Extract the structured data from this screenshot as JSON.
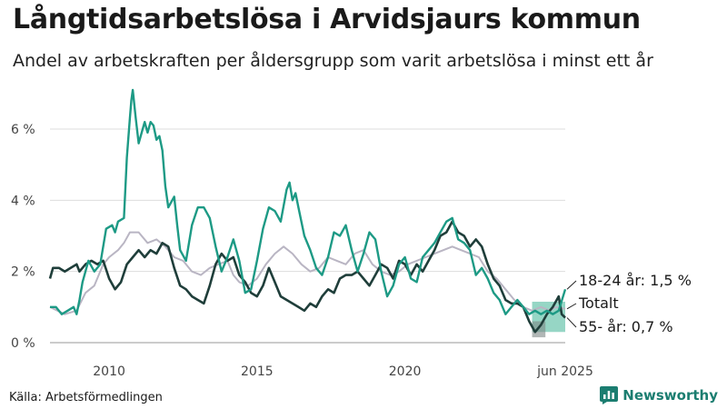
{
  "header": {
    "title": "Långtidsarbetslösa i Arvidsjaurs kommun",
    "subtitle": "Andel av arbetskraften per åldersgrupp som varit arbetslösa i minst ett år"
  },
  "footer": {
    "source": "Källa: Arbetsförmedlingen",
    "brand": "Newsworthy"
  },
  "colors": {
    "youth": "#1d9a85",
    "total": "#b9b5c3",
    "older": "#1f3e3a",
    "band": "#69c4ad",
    "band_dark": "#7d8785",
    "grid": "#dddddd",
    "axis": "#444444"
  },
  "chart_data": {
    "type": "line",
    "title": "Långtidsarbetslösa i Arvidsjaurs kommun",
    "subtitle": "Andel av arbetskraften per åldersgrupp som varit arbetslösa i minst ett år",
    "xlabel": "",
    "ylabel": "",
    "x_unit": "year",
    "xlim": [
      2008.0,
      2025.42
    ],
    "ylim": [
      0,
      7.2
    ],
    "y_ticks": [
      {
        "value": 0,
        "label": "0 %"
      },
      {
        "value": 2,
        "label": "2 %"
      },
      {
        "value": 4,
        "label": "4 %"
      },
      {
        "value": 6,
        "label": "6 %"
      }
    ],
    "x_ticks": [
      {
        "value": 2010,
        "label": "2010"
      },
      {
        "value": 2015,
        "label": "2015"
      },
      {
        "value": 2020,
        "label": "2020"
      },
      {
        "value": 2025.42,
        "label": "jun 2025"
      }
    ],
    "grid": true,
    "legend": "end-labels",
    "series": [
      {
        "key": "total",
        "name": "Totalt",
        "end_label": "Totalt",
        "points": [
          [
            2008.0,
            1.0
          ],
          [
            2008.5,
            0.8
          ],
          [
            2008.9,
            0.9
          ],
          [
            2009.2,
            1.4
          ],
          [
            2009.5,
            1.6
          ],
          [
            2009.8,
            2.2
          ],
          [
            2010.0,
            2.4
          ],
          [
            2010.3,
            2.6
          ],
          [
            2010.5,
            2.8
          ],
          [
            2010.7,
            3.1
          ],
          [
            2011.0,
            3.1
          ],
          [
            2011.3,
            2.8
          ],
          [
            2011.6,
            2.9
          ],
          [
            2011.9,
            2.7
          ],
          [
            2012.2,
            2.4
          ],
          [
            2012.5,
            2.3
          ],
          [
            2012.8,
            2.0
          ],
          [
            2013.1,
            1.9
          ],
          [
            2013.4,
            2.1
          ],
          [
            2013.7,
            2.2
          ],
          [
            2014.0,
            2.3
          ],
          [
            2014.2,
            1.9
          ],
          [
            2014.4,
            1.7
          ],
          [
            2014.7,
            1.6
          ],
          [
            2015.0,
            1.8
          ],
          [
            2015.3,
            2.2
          ],
          [
            2015.6,
            2.5
          ],
          [
            2015.9,
            2.7
          ],
          [
            2016.2,
            2.5
          ],
          [
            2016.5,
            2.2
          ],
          [
            2016.8,
            2.0
          ],
          [
            2017.1,
            2.1
          ],
          [
            2017.4,
            2.4
          ],
          [
            2017.7,
            2.3
          ],
          [
            2018.0,
            2.2
          ],
          [
            2018.3,
            2.5
          ],
          [
            2018.6,
            2.6
          ],
          [
            2018.9,
            2.2
          ],
          [
            2019.2,
            2.0
          ],
          [
            2019.5,
            1.9
          ],
          [
            2019.8,
            2.0
          ],
          [
            2020.1,
            2.2
          ],
          [
            2020.4,
            2.3
          ],
          [
            2020.7,
            2.4
          ],
          [
            2021.0,
            2.5
          ],
          [
            2021.3,
            2.6
          ],
          [
            2021.6,
            2.7
          ],
          [
            2021.9,
            2.6
          ],
          [
            2022.2,
            2.5
          ],
          [
            2022.5,
            2.4
          ],
          [
            2022.8,
            2.0
          ],
          [
            2023.1,
            1.8
          ],
          [
            2023.4,
            1.5
          ],
          [
            2023.7,
            1.2
          ],
          [
            2024.0,
            1.0
          ],
          [
            2024.3,
            0.9
          ],
          [
            2024.6,
            1.0
          ],
          [
            2024.9,
            0.9
          ],
          [
            2025.1,
            1.0
          ],
          [
            2025.42,
            0.95
          ]
        ]
      },
      {
        "key": "older",
        "name": "55- år",
        "end_label": "55- år: 0,7 %",
        "points": [
          [
            2008.0,
            1.8
          ],
          [
            2008.1,
            2.1
          ],
          [
            2008.3,
            2.1
          ],
          [
            2008.5,
            2.0
          ],
          [
            2008.7,
            2.1
          ],
          [
            2008.9,
            2.2
          ],
          [
            2009.0,
            2.0
          ],
          [
            2009.2,
            2.2
          ],
          [
            2009.4,
            2.3
          ],
          [
            2009.6,
            2.2
          ],
          [
            2009.8,
            2.3
          ],
          [
            2010.0,
            1.8
          ],
          [
            2010.2,
            1.5
          ],
          [
            2010.4,
            1.7
          ],
          [
            2010.6,
            2.2
          ],
          [
            2010.8,
            2.4
          ],
          [
            2011.0,
            2.6
          ],
          [
            2011.2,
            2.4
          ],
          [
            2011.4,
            2.6
          ],
          [
            2011.6,
            2.5
          ],
          [
            2011.8,
            2.8
          ],
          [
            2012.0,
            2.7
          ],
          [
            2012.2,
            2.1
          ],
          [
            2012.4,
            1.6
          ],
          [
            2012.6,
            1.5
          ],
          [
            2012.8,
            1.3
          ],
          [
            2013.0,
            1.2
          ],
          [
            2013.2,
            1.1
          ],
          [
            2013.4,
            1.6
          ],
          [
            2013.6,
            2.2
          ],
          [
            2013.8,
            2.5
          ],
          [
            2014.0,
            2.3
          ],
          [
            2014.2,
            2.4
          ],
          [
            2014.4,
            1.9
          ],
          [
            2014.6,
            1.7
          ],
          [
            2014.8,
            1.4
          ],
          [
            2015.0,
            1.3
          ],
          [
            2015.2,
            1.6
          ],
          [
            2015.4,
            2.1
          ],
          [
            2015.6,
            1.7
          ],
          [
            2015.8,
            1.3
          ],
          [
            2016.0,
            1.2
          ],
          [
            2016.2,
            1.1
          ],
          [
            2016.4,
            1.0
          ],
          [
            2016.6,
            0.9
          ],
          [
            2016.8,
            1.1
          ],
          [
            2017.0,
            1.0
          ],
          [
            2017.2,
            1.3
          ],
          [
            2017.4,
            1.5
          ],
          [
            2017.6,
            1.4
          ],
          [
            2017.8,
            1.8
          ],
          [
            2018.0,
            1.9
          ],
          [
            2018.2,
            1.9
          ],
          [
            2018.4,
            2.0
          ],
          [
            2018.6,
            1.8
          ],
          [
            2018.8,
            1.6
          ],
          [
            2019.0,
            1.9
          ],
          [
            2019.2,
            2.2
          ],
          [
            2019.4,
            2.1
          ],
          [
            2019.6,
            1.8
          ],
          [
            2019.8,
            2.3
          ],
          [
            2020.0,
            2.2
          ],
          [
            2020.2,
            1.9
          ],
          [
            2020.4,
            2.2
          ],
          [
            2020.6,
            2.0
          ],
          [
            2020.8,
            2.3
          ],
          [
            2021.0,
            2.6
          ],
          [
            2021.2,
            3.0
          ],
          [
            2021.4,
            3.1
          ],
          [
            2021.6,
            3.4
          ],
          [
            2021.8,
            3.1
          ],
          [
            2022.0,
            3.0
          ],
          [
            2022.2,
            2.7
          ],
          [
            2022.4,
            2.9
          ],
          [
            2022.6,
            2.7
          ],
          [
            2022.8,
            2.2
          ],
          [
            2023.0,
            1.8
          ],
          [
            2023.2,
            1.6
          ],
          [
            2023.4,
            1.2
          ],
          [
            2023.6,
            1.1
          ],
          [
            2023.8,
            1.1
          ],
          [
            2024.0,
            1.0
          ],
          [
            2024.2,
            0.6
          ],
          [
            2024.4,
            0.3
          ],
          [
            2024.6,
            0.5
          ],
          [
            2024.8,
            0.8
          ],
          [
            2025.0,
            1.0
          ],
          [
            2025.2,
            1.3
          ],
          [
            2025.3,
            0.8
          ],
          [
            2025.42,
            0.7
          ]
        ]
      },
      {
        "key": "youth",
        "name": "18-24 år",
        "end_label": "18-24 år: 1,5 %",
        "points": [
          [
            2008.0,
            1.0
          ],
          [
            2008.2,
            1.0
          ],
          [
            2008.4,
            0.8
          ],
          [
            2008.6,
            0.9
          ],
          [
            2008.8,
            1.0
          ],
          [
            2008.9,
            0.8
          ],
          [
            2009.0,
            1.2
          ],
          [
            2009.1,
            1.7
          ],
          [
            2009.3,
            2.3
          ],
          [
            2009.5,
            2.0
          ],
          [
            2009.7,
            2.2
          ],
          [
            2009.9,
            3.2
          ],
          [
            2010.1,
            3.3
          ],
          [
            2010.2,
            3.1
          ],
          [
            2010.3,
            3.4
          ],
          [
            2010.5,
            3.5
          ],
          [
            2010.6,
            5.2
          ],
          [
            2010.7,
            6.3
          ],
          [
            2010.75,
            6.8
          ],
          [
            2010.8,
            7.1
          ],
          [
            2010.9,
            6.3
          ],
          [
            2011.0,
            5.6
          ],
          [
            2011.1,
            5.9
          ],
          [
            2011.2,
            6.2
          ],
          [
            2011.3,
            5.9
          ],
          [
            2011.4,
            6.2
          ],
          [
            2011.5,
            6.1
          ],
          [
            2011.6,
            5.7
          ],
          [
            2011.7,
            5.8
          ],
          [
            2011.8,
            5.4
          ],
          [
            2011.9,
            4.4
          ],
          [
            2012.0,
            3.8
          ],
          [
            2012.2,
            4.1
          ],
          [
            2012.3,
            3.3
          ],
          [
            2012.4,
            2.6
          ],
          [
            2012.6,
            2.3
          ],
          [
            2012.8,
            3.3
          ],
          [
            2013.0,
            3.8
          ],
          [
            2013.2,
            3.8
          ],
          [
            2013.4,
            3.5
          ],
          [
            2013.6,
            2.7
          ],
          [
            2013.8,
            2.0
          ],
          [
            2014.0,
            2.4
          ],
          [
            2014.2,
            2.9
          ],
          [
            2014.4,
            2.3
          ],
          [
            2014.6,
            1.4
          ],
          [
            2014.8,
            1.5
          ],
          [
            2015.0,
            2.3
          ],
          [
            2015.2,
            3.2
          ],
          [
            2015.4,
            3.8
          ],
          [
            2015.6,
            3.7
          ],
          [
            2015.8,
            3.4
          ],
          [
            2016.0,
            4.3
          ],
          [
            2016.1,
            4.5
          ],
          [
            2016.2,
            4.0
          ],
          [
            2016.3,
            4.2
          ],
          [
            2016.4,
            3.8
          ],
          [
            2016.6,
            3.0
          ],
          [
            2016.8,
            2.6
          ],
          [
            2017.0,
            2.1
          ],
          [
            2017.2,
            1.9
          ],
          [
            2017.4,
            2.4
          ],
          [
            2017.6,
            3.1
          ],
          [
            2017.8,
            3.0
          ],
          [
            2018.0,
            3.3
          ],
          [
            2018.2,
            2.6
          ],
          [
            2018.4,
            2.0
          ],
          [
            2018.6,
            2.5
          ],
          [
            2018.8,
            3.1
          ],
          [
            2019.0,
            2.9
          ],
          [
            2019.2,
            2.0
          ],
          [
            2019.4,
            1.3
          ],
          [
            2019.6,
            1.6
          ],
          [
            2019.8,
            2.2
          ],
          [
            2020.0,
            2.4
          ],
          [
            2020.2,
            1.8
          ],
          [
            2020.4,
            1.7
          ],
          [
            2020.6,
            2.4
          ],
          [
            2020.8,
            2.6
          ],
          [
            2021.0,
            2.8
          ],
          [
            2021.2,
            3.1
          ],
          [
            2021.4,
            3.4
          ],
          [
            2021.6,
            3.5
          ],
          [
            2021.8,
            2.9
          ],
          [
            2022.0,
            2.8
          ],
          [
            2022.2,
            2.6
          ],
          [
            2022.4,
            1.9
          ],
          [
            2022.6,
            2.1
          ],
          [
            2022.8,
            1.8
          ],
          [
            2023.0,
            1.4
          ],
          [
            2023.2,
            1.2
          ],
          [
            2023.4,
            0.8
          ],
          [
            2023.6,
            1.0
          ],
          [
            2023.8,
            1.2
          ],
          [
            2024.0,
            1.0
          ],
          [
            2024.2,
            0.8
          ],
          [
            2024.4,
            0.9
          ],
          [
            2024.6,
            0.8
          ],
          [
            2024.8,
            0.9
          ],
          [
            2025.0,
            0.8
          ],
          [
            2025.2,
            0.9
          ],
          [
            2025.42,
            1.5
          ]
        ]
      }
    ],
    "band": {
      "x_range": [
        2024.3,
        2025.42
      ],
      "y_range": [
        0.3,
        1.15
      ],
      "inner_y_range": [
        0.15,
        0.6
      ],
      "inner_x_range": [
        2024.3,
        2024.75
      ]
    }
  }
}
